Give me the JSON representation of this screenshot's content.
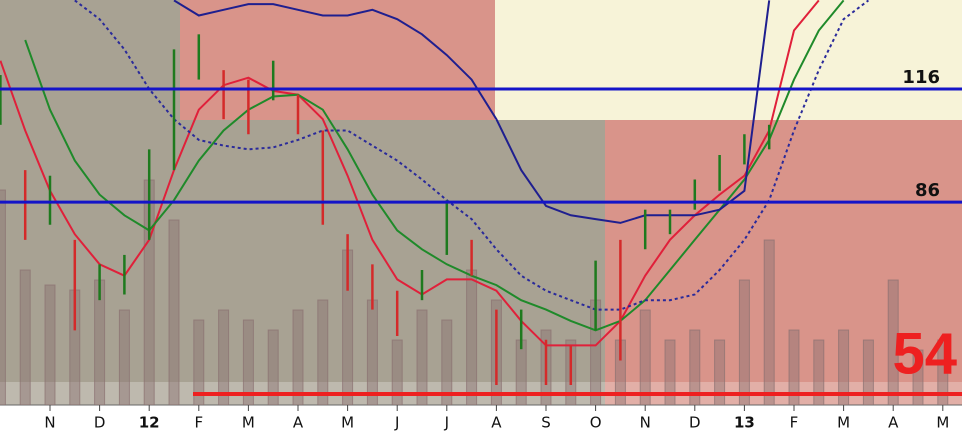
{
  "chart_data": {
    "type": "ohlc",
    "categories": [
      null,
      null,
      "N",
      null,
      "D",
      null,
      "12",
      null,
      "F",
      null,
      "M",
      null,
      "A",
      null,
      "M",
      null,
      "J",
      null,
      "J",
      null,
      "A",
      null,
      "S",
      null,
      "O",
      null,
      "N",
      null,
      "D",
      null,
      "13",
      null,
      "F",
      null,
      "M",
      null,
      "A",
      null,
      "M"
    ],
    "high": [
      119.7,
      94.5,
      93,
      76,
      69.5,
      72,
      100,
      126.5,
      130.5,
      121,
      118.5,
      123.5,
      114.5,
      105,
      77.5,
      69.5,
      62.5,
      68,
      86.5,
      76,
      57.5,
      57.5,
      49.5,
      48,
      70.5,
      76,
      84,
      84,
      92,
      98.5,
      104,
      106.5,
      null,
      null,
      null,
      null,
      null,
      null,
      null
    ],
    "low": [
      106.5,
      76,
      80,
      52,
      60,
      61.5,
      76,
      94.5,
      118.5,
      108,
      104,
      113,
      104,
      80,
      62.5,
      57.5,
      50.5,
      60,
      72,
      66.5,
      37.5,
      47,
      37.5,
      37.5,
      52,
      44,
      73.5,
      77.5,
      84,
      89,
      96,
      100,
      null,
      null,
      null,
      null,
      null,
      null,
      null
    ],
    "up_color": "#1e7a1e",
    "down_color": "#d42a2a",
    "series": [
      {
        "color": "#e0203a",
        "style": "solid",
        "values": [
          123.5,
          105,
          89,
          77.5,
          69.5,
          66.5,
          76,
          94.5,
          110.5,
          117,
          119,
          115.5,
          114.5,
          108,
          93,
          76,
          65.5,
          61.5,
          65.5,
          65.5,
          62.5,
          54.5,
          48,
          48,
          48,
          54.5,
          66.5,
          76,
          82.5,
          88,
          93,
          105,
          131.5,
          139.5,
          null,
          null,
          null,
          null,
          null
        ]
      },
      {
        "color": "#1f8a2a",
        "style": "solid",
        "values": [
          null,
          129,
          110.5,
          97,
          88,
          82.5,
          78.5,
          86.5,
          97,
          105,
          110.5,
          114,
          114.5,
          110.5,
          100,
          88,
          78.5,
          73.5,
          69.5,
          66.5,
          64,
          60,
          57.5,
          54.5,
          52,
          54.5,
          60,
          68,
          76,
          84,
          92,
          102.5,
          118.5,
          131.5,
          139.5,
          null,
          null,
          null,
          null
        ]
      },
      {
        "color": "#2a2a9a",
        "style": "dotted",
        "values": [
          null,
          null,
          null,
          139.5,
          134.5,
          126.5,
          116,
          108,
          102.5,
          101,
          100,
          100.5,
          102.5,
          105,
          105,
          101,
          97,
          92,
          86.5,
          81.5,
          73.5,
          66.5,
          62.5,
          60,
          57.5,
          57.5,
          60,
          60,
          61.5,
          68,
          76,
          86.5,
          105,
          121,
          134.5,
          139.5,
          null,
          null,
          null
        ]
      },
      {
        "color": "#1f1f8f",
        "style": "solid",
        "values": [
          null,
          null,
          null,
          null,
          null,
          null,
          null,
          139.5,
          135.5,
          137,
          138.5,
          138.5,
          137,
          135.5,
          135.5,
          137,
          134.5,
          130.5,
          125,
          118.5,
          108,
          94.5,
          85,
          82.5,
          81.5,
          80.5,
          82.5,
          82.5,
          82.5,
          84,
          89,
          139.5,
          null,
          null,
          null,
          null,
          null,
          null,
          null
        ]
      }
    ],
    "ylim": [
      32.2,
      139.6
    ],
    "volume": [
      215,
      135,
      120,
      115,
      125,
      95,
      225,
      185,
      85,
      95,
      85,
      75,
      95,
      105,
      155,
      105,
      65,
      95,
      85,
      135,
      105,
      65,
      75,
      65,
      105,
      65,
      95,
      65,
      75,
      65,
      125,
      165,
      75,
      65,
      75,
      65,
      125,
      55,
      65
    ],
    "vlim": [
      0,
      405
    ],
    "volume_color": "#8a7070",
    "levels": [
      116,
      86
    ],
    "level_color": "#1414c8",
    "indicator_value": 54,
    "indicator_color": "#ee2020"
  }
}
